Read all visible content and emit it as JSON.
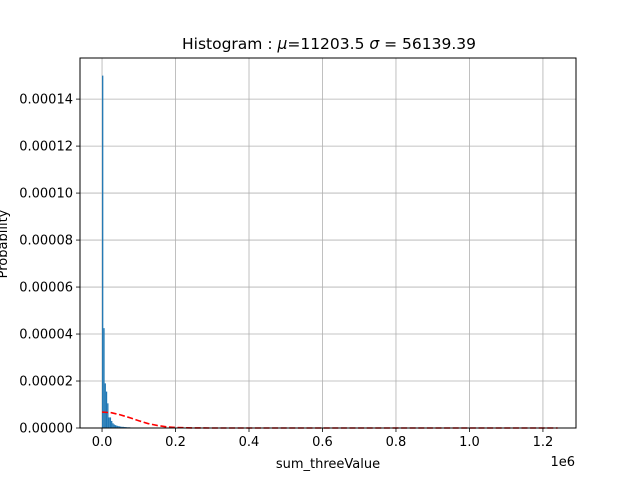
{
  "chart_data": {
    "type": "bar",
    "title": "Histogram : μ=11203.5 σ = 56139.39",
    "title_parts": {
      "prefix": "Histogram : ",
      "mu_symbol": "μ",
      "mu_text": "=11203.5 ",
      "sigma_symbol": "σ",
      "sigma_text": " = 56139.39"
    },
    "xlabel": "sum_threeValue",
    "ylabel": "Probability",
    "x_offset_label": "1e6",
    "xlim": [
      -60000,
      1290000
    ],
    "ylim": [
      0,
      0.0001575
    ],
    "x_ticks": [
      0.0,
      0.2,
      0.4,
      0.6,
      0.8,
      1.0,
      1.2
    ],
    "x_tick_labels": [
      "0.0",
      "0.2",
      "0.4",
      "0.6",
      "0.8",
      "1.0",
      "1.2"
    ],
    "x_tick_scale": 1000000,
    "y_ticks": [
      0,
      2e-05,
      4e-05,
      6e-05,
      8e-05,
      0.0001,
      0.00012,
      0.00014
    ],
    "y_tick_labels": [
      "0.00000",
      "0.00002",
      "0.00004",
      "0.00006",
      "0.00008",
      "0.00010",
      "0.00012",
      "0.00014"
    ],
    "grid": true,
    "bar_color": "#1f77b4",
    "fit_color": "#ff0000",
    "bins": [
      {
        "x0": 0,
        "x1": 3500,
        "value": 0.00015
      },
      {
        "x0": 3500,
        "x1": 7000,
        "value": 4.25e-05
      },
      {
        "x0": 7000,
        "x1": 10500,
        "value": 1.9e-05
      },
      {
        "x0": 10500,
        "x1": 14000,
        "value": 1.55e-05
      },
      {
        "x0": 14000,
        "x1": 17500,
        "value": 1.05e-05
      },
      {
        "x0": 17500,
        "x1": 21000,
        "value": 4.5e-06
      },
      {
        "x0": 21000,
        "x1": 24500,
        "value": 4.5e-06
      },
      {
        "x0": 24500,
        "x1": 28000,
        "value": 3e-06
      },
      {
        "x0": 28000,
        "x1": 31500,
        "value": 2e-06
      },
      {
        "x0": 31500,
        "x1": 35000,
        "value": 1.5e-06
      },
      {
        "x0": 35000,
        "x1": 38500,
        "value": 1.2e-06
      },
      {
        "x0": 38500,
        "x1": 42000,
        "value": 1e-06
      },
      {
        "x0": 42000,
        "x1": 45500,
        "value": 8e-07
      },
      {
        "x0": 45500,
        "x1": 49000,
        "value": 7e-07
      },
      {
        "x0": 49000,
        "x1": 52500,
        "value": 6e-07
      },
      {
        "x0": 52500,
        "x1": 56000,
        "value": 5e-07
      },
      {
        "x0": 56000,
        "x1": 59500,
        "value": 5e-07
      },
      {
        "x0": 59500,
        "x1": 63000,
        "value": 4e-07
      },
      {
        "x0": 63000,
        "x1": 66500,
        "value": 4e-07
      },
      {
        "x0": 66500,
        "x1": 70000,
        "value": 3e-07
      },
      {
        "x0": 70000,
        "x1": 77000,
        "value": 3e-07
      },
      {
        "x0": 77000,
        "x1": 84000,
        "value": 2e-07
      },
      {
        "x0": 84000,
        "x1": 91000,
        "value": 2e-07
      },
      {
        "x0": 91000,
        "x1": 98000,
        "value": 1e-07
      }
    ],
    "fit_curve": {
      "style": "dashed",
      "x": [
        0,
        25000,
        50000,
        75000,
        100000,
        125000,
        150000,
        175000,
        200000,
        250000,
        300000,
        1240000
      ],
      "y": [
        6.8e-06,
        6.5e-06,
        5.6e-06,
        4.4e-06,
        3.1e-06,
        1.9e-06,
        1.1e-06,
        5e-07,
        2e-07,
        2e-08,
        0.0,
        0.0
      ]
    }
  }
}
